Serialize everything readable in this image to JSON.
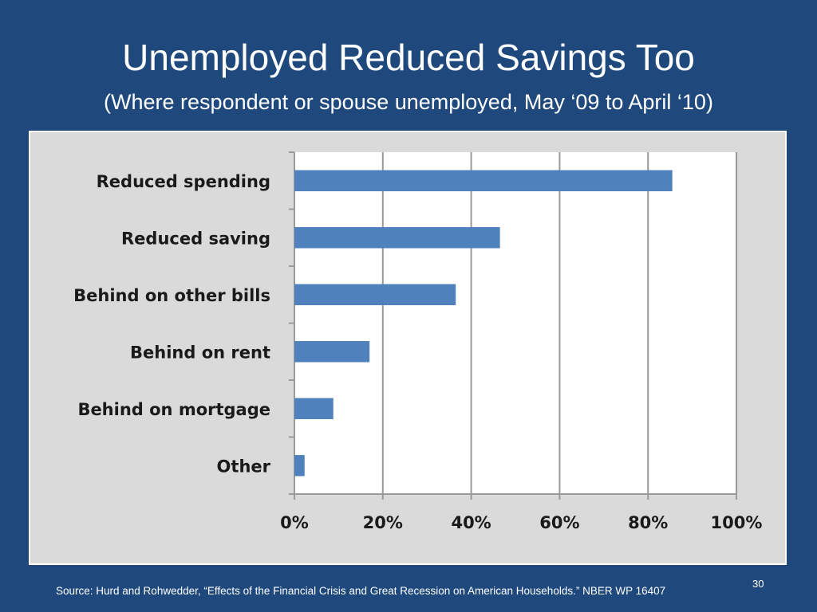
{
  "slide": {
    "title": "Unemployed Reduced Savings Too",
    "subtitle": "(Where respondent or spouse unemployed, May ‘09 to April ‘10)",
    "source": "Source: Hurd and Rohwedder, “Effects of the Financial Crisis and Great Recession on American Households.” NBER WP 16407",
    "page_number": "30"
  },
  "colors": {
    "background": "#1f497d",
    "chart_frame": "#dadada",
    "plot_area": "#ffffff",
    "bar": "#4f81bd",
    "gridline": "#9a9a9a"
  },
  "chart_data": {
    "type": "bar",
    "orientation": "horizontal",
    "categories": [
      "Reduced spending",
      "Reduced saving",
      "Behind on other bills",
      "Behind on rent",
      "Behind on mortgage",
      "Other"
    ],
    "values": [
      85.5,
      46.5,
      36.5,
      17,
      8.8,
      2.3
    ],
    "unit": "%",
    "xlim": [
      0,
      100
    ],
    "x_ticks": [
      "0%",
      "20%",
      "40%",
      "60%",
      "80%",
      "100%"
    ],
    "grid": "vertical major gridlines",
    "legend": "none"
  }
}
